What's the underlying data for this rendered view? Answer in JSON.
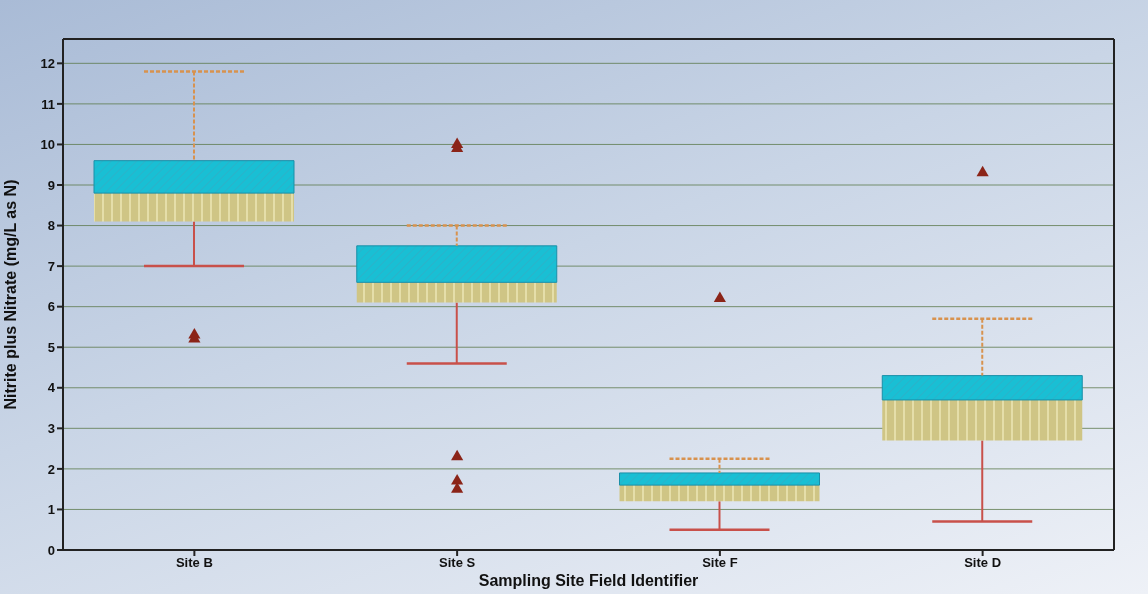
{
  "chart_data": {
    "type": "box",
    "xlabel": "Sampling Site Field Identifier",
    "ylabel": "Nitrite plus Nitrate (mg/L as N)",
    "categories": [
      "Site B",
      "Site S",
      "Site F",
      "Site D"
    ],
    "boxes": [
      {
        "low": 7.0,
        "q1": 8.1,
        "median": 8.8,
        "q3": 9.6,
        "high": 11.8,
        "outliers": [
          5.3,
          5.2
        ]
      },
      {
        "low": 4.6,
        "q1": 6.1,
        "median": 6.6,
        "q3": 7.5,
        "high": 8.0,
        "outliers": [
          10.0,
          9.9,
          2.3,
          1.7,
          1.5
        ]
      },
      {
        "low": 0.5,
        "q1": 1.2,
        "median": 1.6,
        "q3": 1.9,
        "high": 2.25,
        "outliers": [
          6.2
        ]
      },
      {
        "low": 0.7,
        "q1": 2.7,
        "median": 3.7,
        "q3": 4.3,
        "high": 5.7,
        "outliers": [
          9.3
        ]
      }
    ],
    "color": "#19bfd4",
    "ylim": [
      0,
      12.6
    ],
    "yticks": [
      0,
      1,
      2,
      3,
      4,
      5,
      6,
      7,
      8,
      9,
      10,
      11,
      12
    ],
    "grid": "y",
    "marker": "triangle"
  }
}
